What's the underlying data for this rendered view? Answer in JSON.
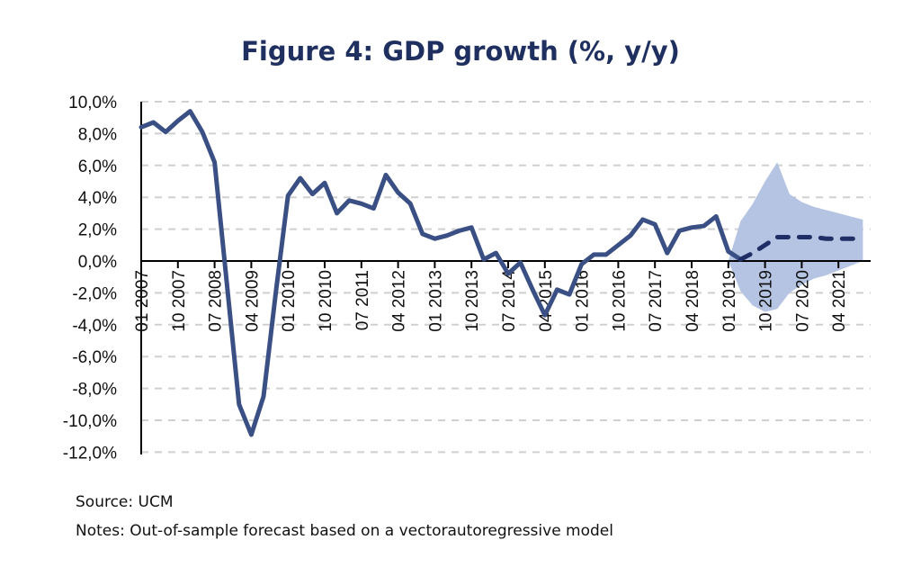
{
  "chart_data": {
    "type": "line",
    "title": "Figure 4: GDP growth (%, y/y)",
    "xlabel": "",
    "ylabel": "",
    "ylim": [
      -12,
      10
    ],
    "yticks": [
      "10,0%",
      "8,0%",
      "6,0%",
      "4,0%",
      "2,0%",
      "0,0%",
      "-2,0%",
      "-4,0%",
      "-6,0%",
      "-8,0%",
      "-10,0%",
      "-12,0%"
    ],
    "xticks": [
      "01 2007",
      "10 2007",
      "07 2008",
      "04 2009",
      "01 2010",
      "10 2010",
      "07 2011",
      "04 2012",
      "01 2013",
      "10 2013",
      "07 2014",
      "04 2015",
      "01 2016",
      "10 2016",
      "07 2017",
      "04 2018",
      "01 2019",
      "10 2019",
      "07 2020",
      "04 2021"
    ],
    "grid": "horizontal dashed",
    "x_frequency": "quarterly, 2007Q1 to 2021Q4",
    "series": [
      {
        "style": "solid",
        "color": "#3a5085",
        "start_quarter": 0,
        "values": [
          8.4,
          8.7,
          8.1,
          8.8,
          9.4,
          8.1,
          6.2,
          -1.4,
          -9.0,
          -10.9,
          -8.5,
          -2.0,
          4.1,
          5.2,
          4.2,
          4.9,
          3.0,
          3.8,
          3.6,
          3.3,
          5.4,
          4.3,
          3.6,
          1.7,
          1.4,
          1.6,
          1.9,
          2.1,
          0.1,
          0.5,
          -0.8,
          -0.1,
          -1.8,
          -3.4,
          -1.8,
          -2.1,
          -0.2,
          0.4,
          0.4,
          1.0,
          1.6,
          2.6,
          2.3,
          0.5,
          1.9,
          2.1,
          2.2,
          2.8,
          0.6,
          0.1
        ]
      },
      {
        "style": "dashed",
        "color": "#1f2f65",
        "start_quarter": 49,
        "values": [
          0.1,
          0.5,
          1.0,
          1.5,
          1.5,
          1.5,
          1.5,
          1.4,
          1.4,
          1.4,
          1.4
        ]
      }
    ],
    "band": {
      "color": "#b4c4e2",
      "start_quarter": 48,
      "upper": [
        0,
        2.5,
        3.6,
        5.0,
        6.2,
        4.2,
        3.7,
        3.4,
        3.2,
        3.0,
        2.8,
        2.6
      ],
      "lower": [
        0,
        -1.9,
        -2.8,
        -3.2,
        -3.0,
        -2.0,
        -1.5,
        -1.1,
        -0.9,
        -0.6,
        -0.3,
        0.0
      ]
    }
  },
  "footer": {
    "source": "Source: UCM",
    "notes": "Notes: Out-of-sample forecast based on a vectorautoregressive model"
  }
}
